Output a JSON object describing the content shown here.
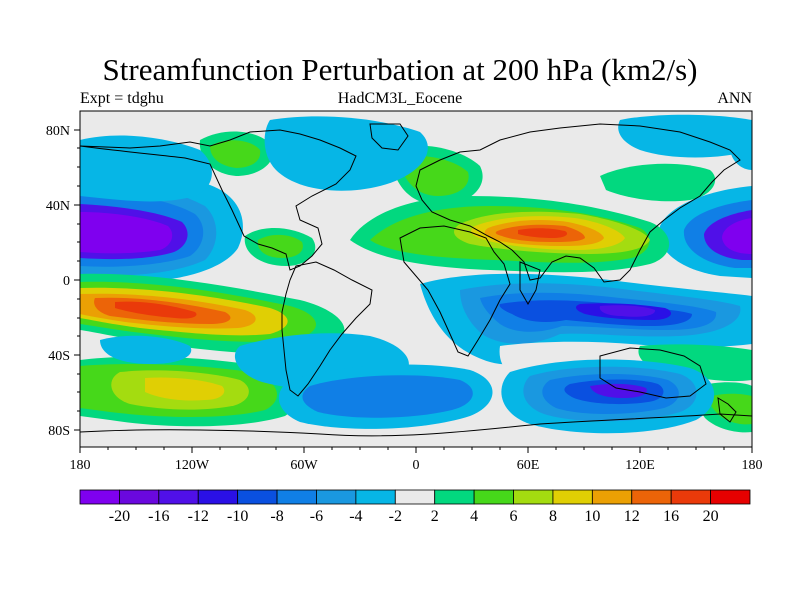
{
  "title": "Streamfunction Perturbation at 200 hPa (km2/s)",
  "subtitle_left": "Expt = tdghu",
  "subtitle_center": "HadCM3L_Eocene",
  "subtitle_right": "ANN",
  "latitude_labels": [
    "80N",
    "40N",
    "0",
    "40S",
    "80S"
  ],
  "longitude_labels": [
    "180",
    "120W",
    "60W",
    "0",
    "60E",
    "120E",
    "180"
  ],
  "colorbar": {
    "levels": [
      "-20",
      "-16",
      "-12",
      "-10",
      "-8",
      "-6",
      "-4",
      "-2",
      "2",
      "4",
      "6",
      "8",
      "10",
      "12",
      "16",
      "20"
    ],
    "colors": [
      "#7f00ef",
      "#6a08de",
      "#5010e8",
      "#2a10e6",
      "#0a50e0",
      "#107fe6",
      "#1a98e0",
      "#06b6e6",
      "#eaeaea",
      "#02d87f",
      "#46d81a",
      "#a4dc10",
      "#e0cf04",
      "#eba004",
      "#ec6408",
      "#ea3a0a",
      "#e60000"
    ]
  },
  "colors": {
    "ocean_neutral": "#eaeaea",
    "coastline": "#000000"
  }
}
